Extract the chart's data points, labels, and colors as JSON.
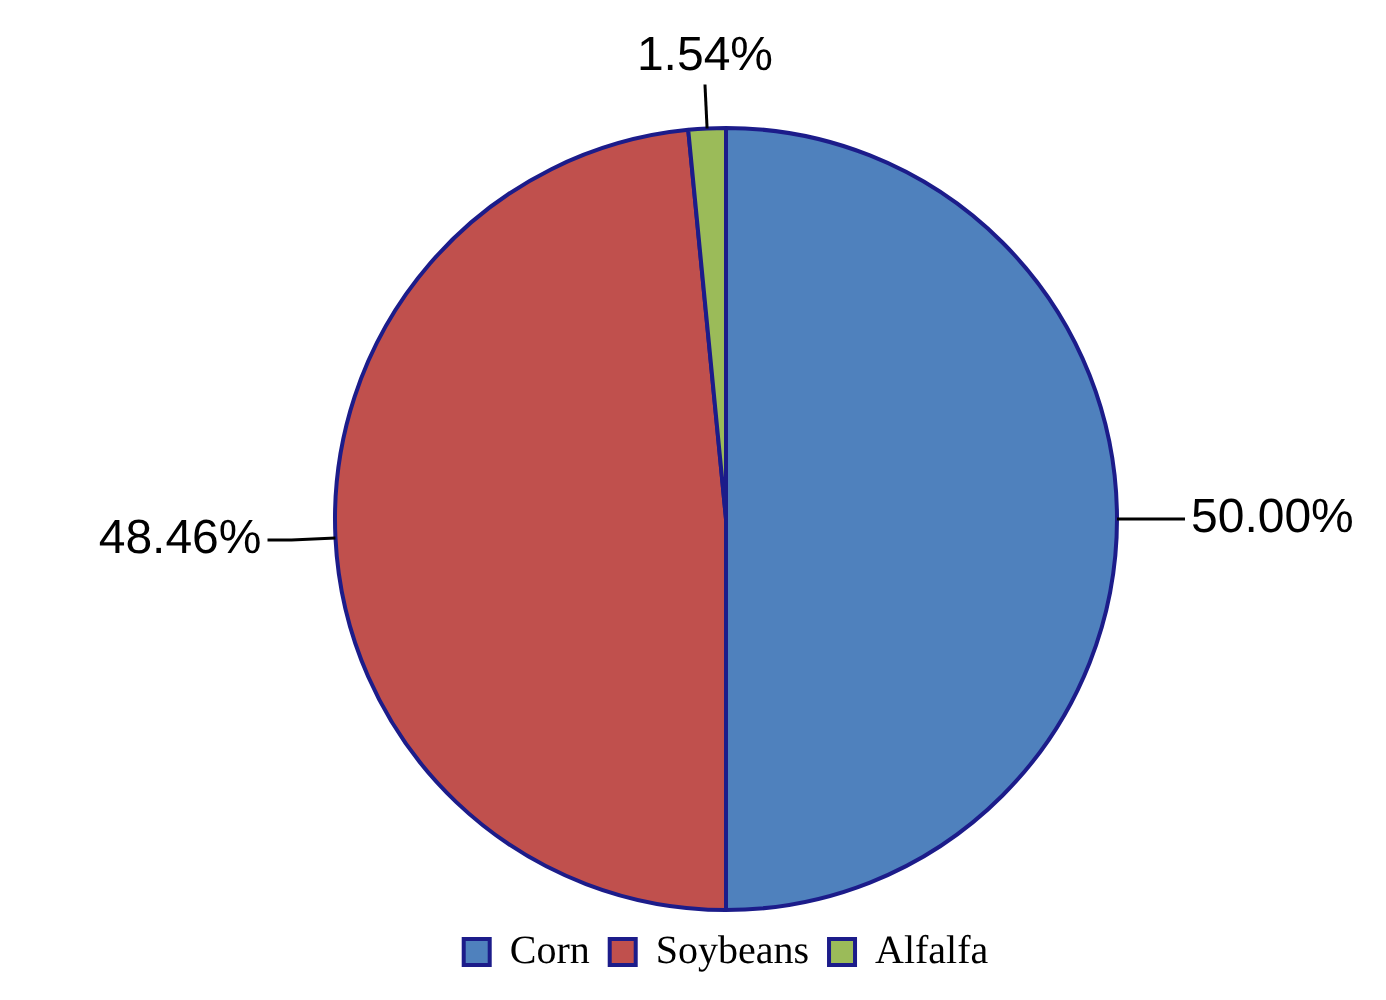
{
  "chart_data": {
    "type": "pie",
    "categories": [
      "Corn",
      "Soybeans",
      "Alfalfa"
    ],
    "values": [
      50,
      48.46,
      1.54
    ],
    "colors": [
      "#4f81bd",
      "#c0504d",
      "#9bbb59"
    ],
    "value_labels": [
      "50.00%",
      "48.46%",
      "1.54%"
    ],
    "legend": "bottom"
  }
}
